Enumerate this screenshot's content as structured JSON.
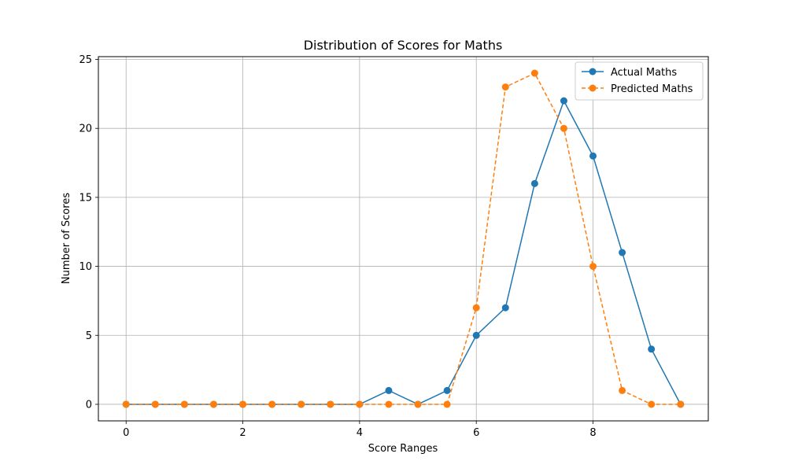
{
  "chart_data": {
    "type": "line",
    "title": "Distribution of Scores for Maths",
    "xlabel": "Score Ranges",
    "ylabel": "Number of Scores",
    "xlim": [
      -0.475,
      9.975
    ],
    "ylim": [
      -1.2,
      25.2
    ],
    "xticks": [
      0,
      2,
      4,
      6,
      8
    ],
    "yticks": [
      0,
      5,
      10,
      15,
      20,
      25
    ],
    "grid": true,
    "legend_position": "top-right",
    "x": [
      0,
      0.5,
      1,
      1.5,
      2,
      2.5,
      3,
      3.5,
      4,
      4.5,
      5,
      5.5,
      6,
      6.5,
      7,
      7.5,
      8,
      8.5,
      9,
      9.5
    ],
    "series": [
      {
        "name": "Actual Maths",
        "color": "#1f77b4",
        "line_style": "solid",
        "marker": "circle",
        "values": [
          0,
          0,
          0,
          0,
          0,
          0,
          0,
          0,
          0,
          1,
          0,
          1,
          5,
          7,
          16,
          22,
          18,
          11,
          4,
          0
        ]
      },
      {
        "name": "Predicted Maths",
        "color": "#ff7f0e",
        "line_style": "dashed",
        "marker": "circle",
        "values": [
          0,
          0,
          0,
          0,
          0,
          0,
          0,
          0,
          0,
          0,
          0,
          0,
          7,
          23,
          24,
          20,
          10,
          1,
          0,
          0
        ]
      }
    ]
  }
}
